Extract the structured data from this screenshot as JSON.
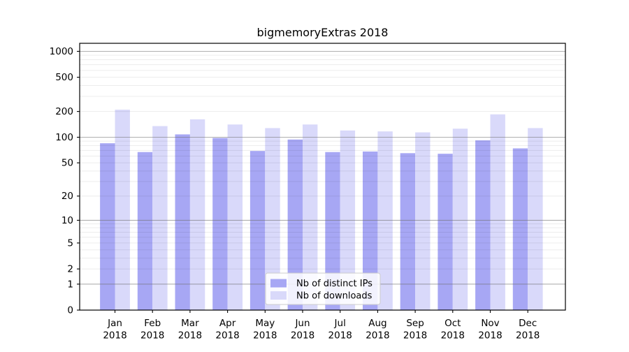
{
  "chart_data": {
    "type": "bar",
    "title": "bigmemoryExtras 2018",
    "categories": [
      "Jan",
      "Feb",
      "Mar",
      "Apr",
      "May",
      "Jun",
      "Jul",
      "Aug",
      "Sep",
      "Oct",
      "Nov",
      "Dec"
    ],
    "year": "2018",
    "series": [
      {
        "name": "Nb of distinct IPs",
        "color": "#a7a7f4",
        "values": [
          85,
          67,
          108,
          98,
          69,
          94,
          67,
          68,
          65,
          64,
          92,
          74
        ]
      },
      {
        "name": "Nb of downloads",
        "color": "#d9d9fa",
        "values": [
          210,
          135,
          162,
          141,
          128,
          141,
          120,
          117,
          114,
          126,
          185,
          128
        ]
      }
    ],
    "yticks": [
      0,
      1,
      2,
      5,
      10,
      20,
      50,
      100,
      200,
      500,
      1000
    ],
    "scale": "log1p",
    "ylim": [
      0,
      1200
    ],
    "xlabel": "",
    "ylabel": "",
    "grid": "on",
    "legend_position": "lower-center-inside",
    "colors": {
      "axis": "#000000",
      "major_grid": "#b3b3b3",
      "minor_grid": "#ebebeb",
      "legend_border": "#cccccc",
      "background": "#ffffff"
    }
  }
}
